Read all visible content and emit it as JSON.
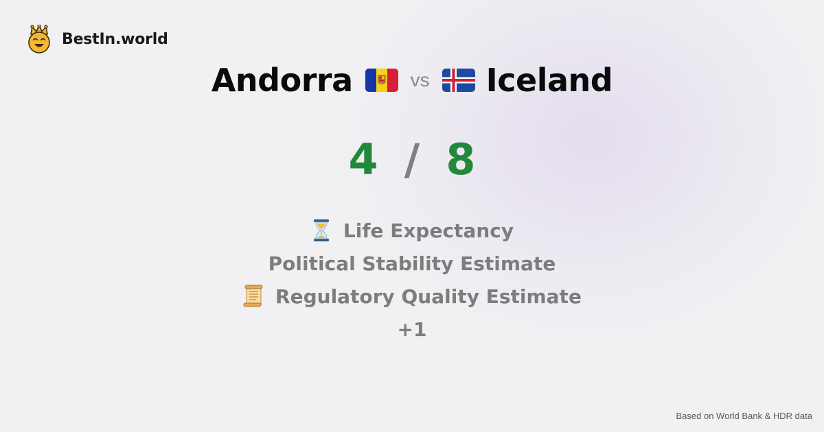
{
  "brand": {
    "name": "BestIn.world",
    "logo_icon": "crown-smiley-icon"
  },
  "comparison": {
    "left_country": "Andorra",
    "left_flag": "andorra-flag-icon",
    "vs_label": "vs",
    "right_country": "Iceland",
    "right_flag": "iceland-flag-icon"
  },
  "score": {
    "left": "4",
    "separator": "/",
    "right": "8",
    "color": "#22883a"
  },
  "criteria": {
    "items": [
      {
        "icon": "hourglass-icon",
        "label": "Life Expectancy"
      },
      {
        "icon": "",
        "label": "Political Stability Estimate"
      },
      {
        "icon": "scroll-icon",
        "label": "Regulatory Quality Estimate"
      }
    ],
    "more": "+1"
  },
  "footer": {
    "source": "Based on World Bank & HDR data"
  }
}
